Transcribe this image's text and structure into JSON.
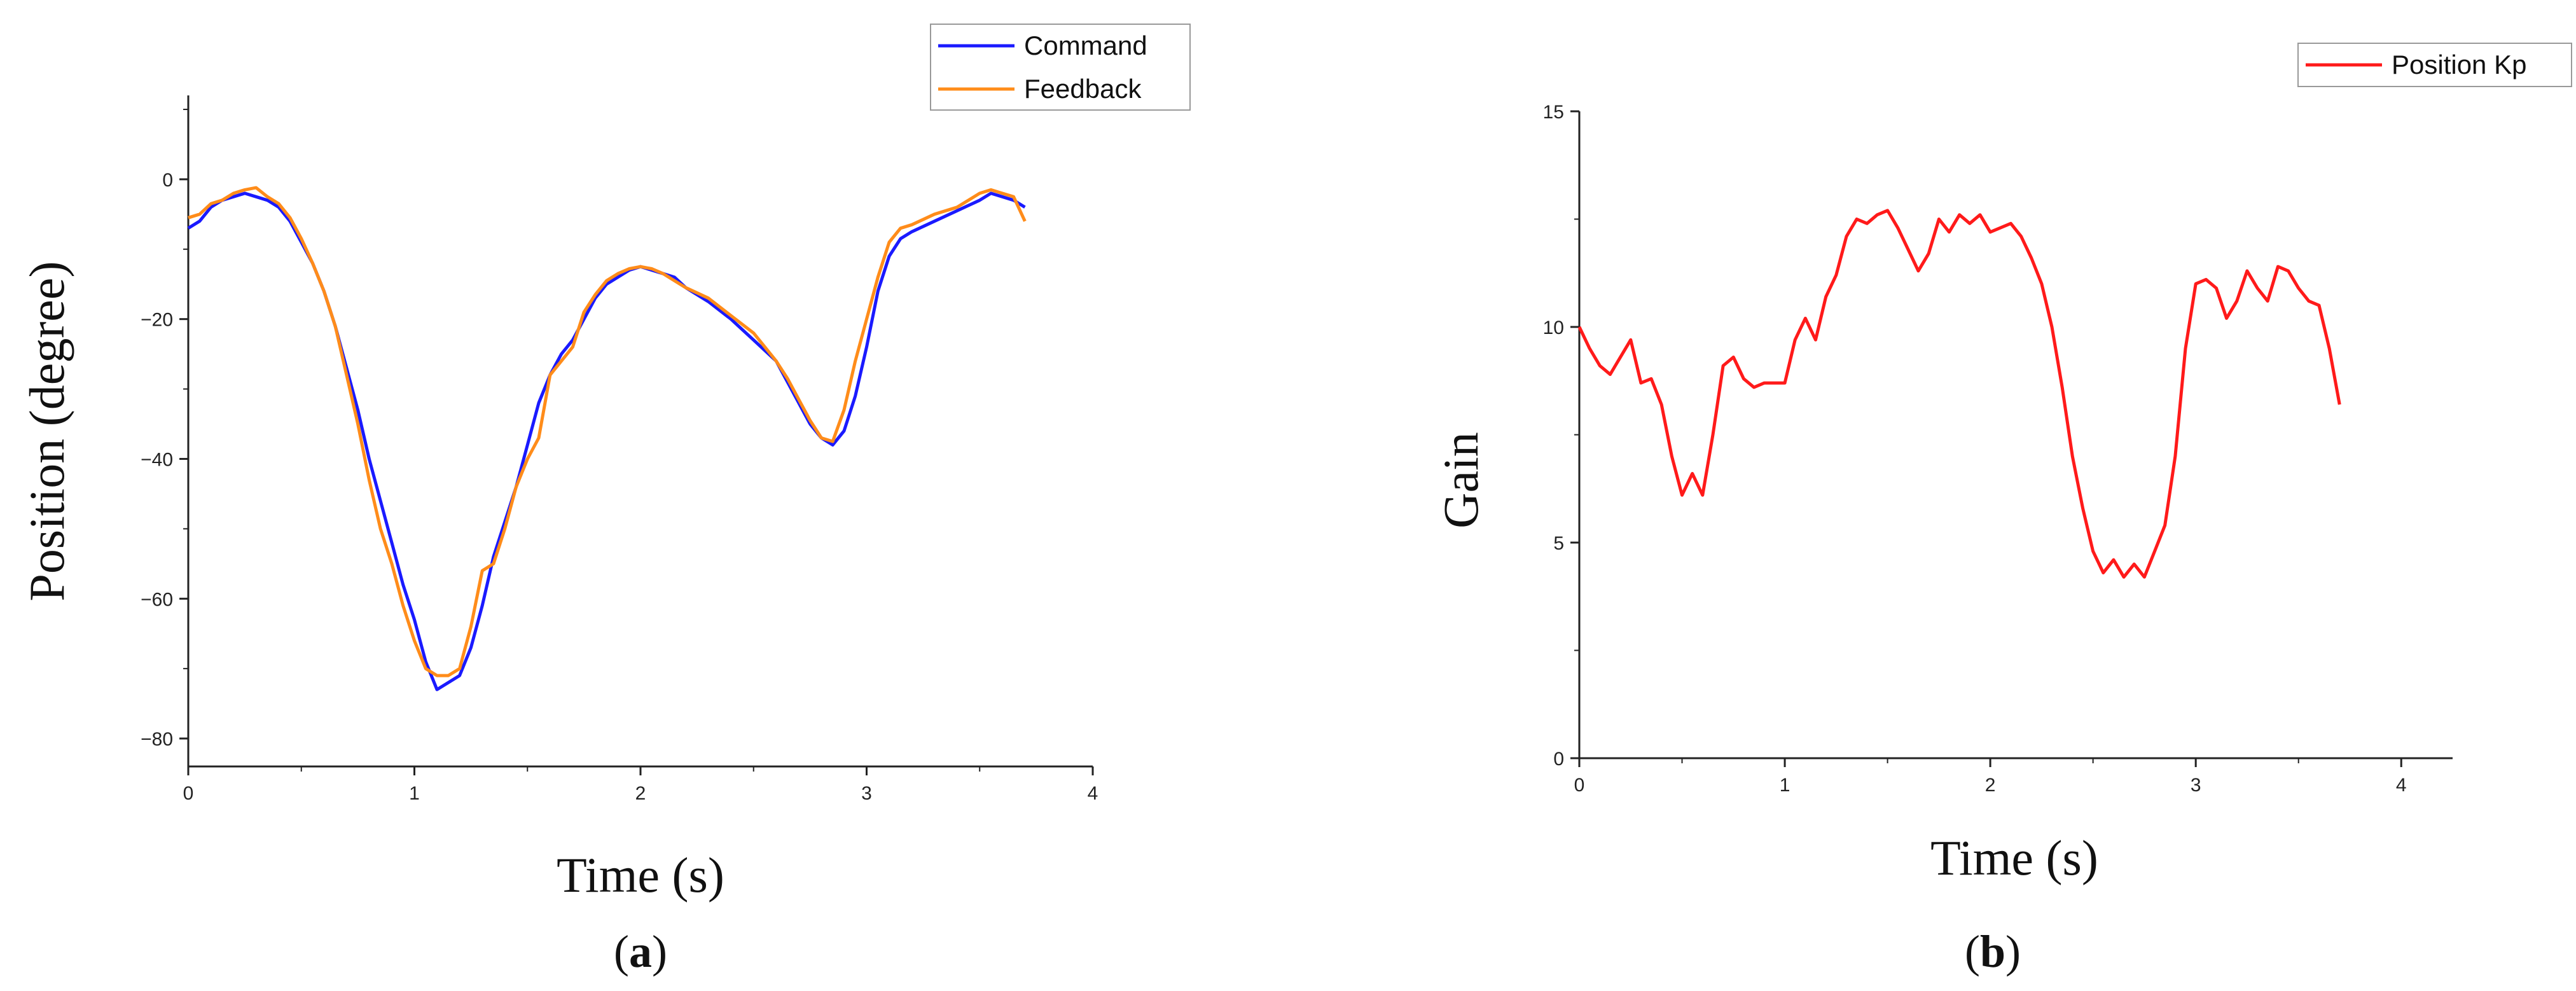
{
  "chart_data": [
    {
      "type": "line",
      "panel_label": "a",
      "xlabel": "Time (s)",
      "ylabel": "Position (degree)",
      "xlim": [
        0,
        4
      ],
      "ylim": [
        -84,
        12
      ],
      "x_ticks": [
        "0",
        "1",
        "2",
        "3",
        "4"
      ],
      "y_ticks": [
        "0",
        "−20",
        "−40",
        "−60",
        "−80"
      ],
      "legend_position": "top-right",
      "series": [
        {
          "name": "Command",
          "color": "#1a1aff",
          "points": [
            [
              0,
              -7
            ],
            [
              0.05,
              -6
            ],
            [
              0.1,
              -4
            ],
            [
              0.15,
              -3
            ],
            [
              0.2,
              -2.5
            ],
            [
              0.25,
              -2
            ],
            [
              0.3,
              -2.5
            ],
            [
              0.35,
              -3
            ],
            [
              0.4,
              -4
            ],
            [
              0.45,
              -6
            ],
            [
              0.5,
              -9
            ],
            [
              0.55,
              -12
            ],
            [
              0.6,
              -16
            ],
            [
              0.65,
              -21
            ],
            [
              0.7,
              -27
            ],
            [
              0.75,
              -33
            ],
            [
              0.8,
              -40
            ],
            [
              0.85,
              -46
            ],
            [
              0.9,
              -52
            ],
            [
              0.95,
              -58
            ],
            [
              1.0,
              -63
            ],
            [
              1.05,
              -69
            ],
            [
              1.1,
              -73
            ],
            [
              1.15,
              -72
            ],
            [
              1.2,
              -71
            ],
            [
              1.25,
              -67
            ],
            [
              1.3,
              -61
            ],
            [
              1.35,
              -54
            ],
            [
              1.4,
              -49
            ],
            [
              1.45,
              -44
            ],
            [
              1.5,
              -38
            ],
            [
              1.55,
              -32
            ],
            [
              1.6,
              -28
            ],
            [
              1.65,
              -25
            ],
            [
              1.7,
              -23
            ],
            [
              1.75,
              -20
            ],
            [
              1.8,
              -17
            ],
            [
              1.85,
              -15
            ],
            [
              1.9,
              -14
            ],
            [
              1.95,
              -13
            ],
            [
              2.0,
              -12.5
            ],
            [
              2.05,
              -13
            ],
            [
              2.1,
              -13.5
            ],
            [
              2.15,
              -14
            ],
            [
              2.2,
              -15.5
            ],
            [
              2.3,
              -17.5
            ],
            [
              2.4,
              -20
            ],
            [
              2.5,
              -23
            ],
            [
              2.6,
              -26
            ],
            [
              2.65,
              -29
            ],
            [
              2.7,
              -32
            ],
            [
              2.75,
              -35
            ],
            [
              2.8,
              -37
            ],
            [
              2.85,
              -38
            ],
            [
              2.9,
              -36
            ],
            [
              2.95,
              -31
            ],
            [
              3.0,
              -24
            ],
            [
              3.05,
              -16
            ],
            [
              3.1,
              -11
            ],
            [
              3.15,
              -8.5
            ],
            [
              3.2,
              -7.5
            ],
            [
              3.3,
              -6
            ],
            [
              3.4,
              -4.5
            ],
            [
              3.5,
              -3
            ],
            [
              3.55,
              -2
            ],
            [
              3.6,
              -2.5
            ],
            [
              3.65,
              -3
            ],
            [
              3.7,
              -4
            ]
          ]
        },
        {
          "name": "Feedback",
          "color": "#ff8c1a",
          "points": [
            [
              0,
              -5.5
            ],
            [
              0.05,
              -5
            ],
            [
              0.1,
              -3.5
            ],
            [
              0.15,
              -3
            ],
            [
              0.2,
              -2
            ],
            [
              0.25,
              -1.5
            ],
            [
              0.3,
              -1.2
            ],
            [
              0.35,
              -2.5
            ],
            [
              0.4,
              -3.5
            ],
            [
              0.45,
              -5.5
            ],
            [
              0.5,
              -8.5
            ],
            [
              0.55,
              -12
            ],
            [
              0.6,
              -16
            ],
            [
              0.65,
              -21
            ],
            [
              0.7,
              -28
            ],
            [
              0.75,
              -35
            ],
            [
              0.8,
              -43
            ],
            [
              0.85,
              -50
            ],
            [
              0.9,
              -55
            ],
            [
              0.95,
              -61
            ],
            [
              1.0,
              -66
            ],
            [
              1.05,
              -70
            ],
            [
              1.1,
              -71
            ],
            [
              1.15,
              -71
            ],
            [
              1.2,
              -70
            ],
            [
              1.25,
              -64
            ],
            [
              1.3,
              -56
            ],
            [
              1.35,
              -55
            ],
            [
              1.4,
              -50
            ],
            [
              1.45,
              -44
            ],
            [
              1.5,
              -40
            ],
            [
              1.55,
              -37
            ],
            [
              1.6,
              -28
            ],
            [
              1.65,
              -26
            ],
            [
              1.7,
              -24
            ],
            [
              1.75,
              -19
            ],
            [
              1.8,
              -16.5
            ],
            [
              1.85,
              -14.5
            ],
            [
              1.9,
              -13.5
            ],
            [
              1.95,
              -12.8
            ],
            [
              2.0,
              -12.5
            ],
            [
              2.05,
              -12.8
            ],
            [
              2.1,
              -13.5
            ],
            [
              2.15,
              -14.5
            ],
            [
              2.2,
              -15.5
            ],
            [
              2.3,
              -17
            ],
            [
              2.4,
              -19.5
            ],
            [
              2.5,
              -22
            ],
            [
              2.6,
              -26
            ],
            [
              2.65,
              -28.5
            ],
            [
              2.7,
              -31.5
            ],
            [
              2.75,
              -34.5
            ],
            [
              2.8,
              -37
            ],
            [
              2.85,
              -37.5
            ],
            [
              2.9,
              -33
            ],
            [
              2.95,
              -26
            ],
            [
              3.0,
              -20
            ],
            [
              3.05,
              -14
            ],
            [
              3.1,
              -9
            ],
            [
              3.15,
              -7
            ],
            [
              3.2,
              -6.5
            ],
            [
              3.3,
              -5
            ],
            [
              3.4,
              -4
            ],
            [
              3.5,
              -2
            ],
            [
              3.55,
              -1.5
            ],
            [
              3.6,
              -2
            ],
            [
              3.65,
              -2.5
            ],
            [
              3.7,
              -6
            ]
          ]
        }
      ]
    },
    {
      "type": "line",
      "panel_label": "b",
      "xlabel": "Time (s)",
      "ylabel": "Gain",
      "xlim": [
        0,
        4.25
      ],
      "ylim": [
        0,
        15
      ],
      "x_ticks": [
        "0",
        "1",
        "2",
        "3",
        "4"
      ],
      "y_ticks": [
        "0",
        "5",
        "10",
        "15"
      ],
      "legend_position": "top-right",
      "series": [
        {
          "name": "Position Kp",
          "color": "#ff1a1a",
          "points": [
            [
              0,
              10
            ],
            [
              0.05,
              9.5
            ],
            [
              0.1,
              9.1
            ],
            [
              0.15,
              8.9
            ],
            [
              0.2,
              9.3
            ],
            [
              0.25,
              9.7
            ],
            [
              0.3,
              8.7
            ],
            [
              0.35,
              8.8
            ],
            [
              0.4,
              8.2
            ],
            [
              0.45,
              7.0
            ],
            [
              0.5,
              6.1
            ],
            [
              0.55,
              6.6
            ],
            [
              0.6,
              6.1
            ],
            [
              0.65,
              7.5
            ],
            [
              0.7,
              9.1
            ],
            [
              0.75,
              9.3
            ],
            [
              0.8,
              8.8
            ],
            [
              0.85,
              8.6
            ],
            [
              0.9,
              8.7
            ],
            [
              0.95,
              8.7
            ],
            [
              1.0,
              8.7
            ],
            [
              1.05,
              9.7
            ],
            [
              1.1,
              10.2
            ],
            [
              1.15,
              9.7
            ],
            [
              1.2,
              10.7
            ],
            [
              1.25,
              11.2
            ],
            [
              1.3,
              12.1
            ],
            [
              1.35,
              12.5
            ],
            [
              1.4,
              12.4
            ],
            [
              1.45,
              12.6
            ],
            [
              1.5,
              12.7
            ],
            [
              1.55,
              12.3
            ],
            [
              1.6,
              11.8
            ],
            [
              1.65,
              11.3
            ],
            [
              1.7,
              11.7
            ],
            [
              1.75,
              12.5
            ],
            [
              1.8,
              12.2
            ],
            [
              1.85,
              12.6
            ],
            [
              1.9,
              12.4
            ],
            [
              1.95,
              12.6
            ],
            [
              2.0,
              12.2
            ],
            [
              2.1,
              12.4
            ],
            [
              2.15,
              12.1
            ],
            [
              2.2,
              11.6
            ],
            [
              2.25,
              11.0
            ],
            [
              2.3,
              10.0
            ],
            [
              2.35,
              8.6
            ],
            [
              2.4,
              7.0
            ],
            [
              2.45,
              5.8
            ],
            [
              2.5,
              4.8
            ],
            [
              2.55,
              4.3
            ],
            [
              2.6,
              4.6
            ],
            [
              2.65,
              4.2
            ],
            [
              2.7,
              4.5
            ],
            [
              2.75,
              4.2
            ],
            [
              2.8,
              4.8
            ],
            [
              2.85,
              5.4
            ],
            [
              2.9,
              7.0
            ],
            [
              2.95,
              9.5
            ],
            [
              3.0,
              11.0
            ],
            [
              3.05,
              11.1
            ],
            [
              3.1,
              10.9
            ],
            [
              3.15,
              10.2
            ],
            [
              3.2,
              10.6
            ],
            [
              3.25,
              11.3
            ],
            [
              3.3,
              10.9
            ],
            [
              3.35,
              10.6
            ],
            [
              3.4,
              11.4
            ],
            [
              3.45,
              11.3
            ],
            [
              3.5,
              10.9
            ],
            [
              3.55,
              10.6
            ],
            [
              3.6,
              10.5
            ],
            [
              3.65,
              9.5
            ],
            [
              3.7,
              8.2
            ]
          ]
        }
      ]
    }
  ]
}
